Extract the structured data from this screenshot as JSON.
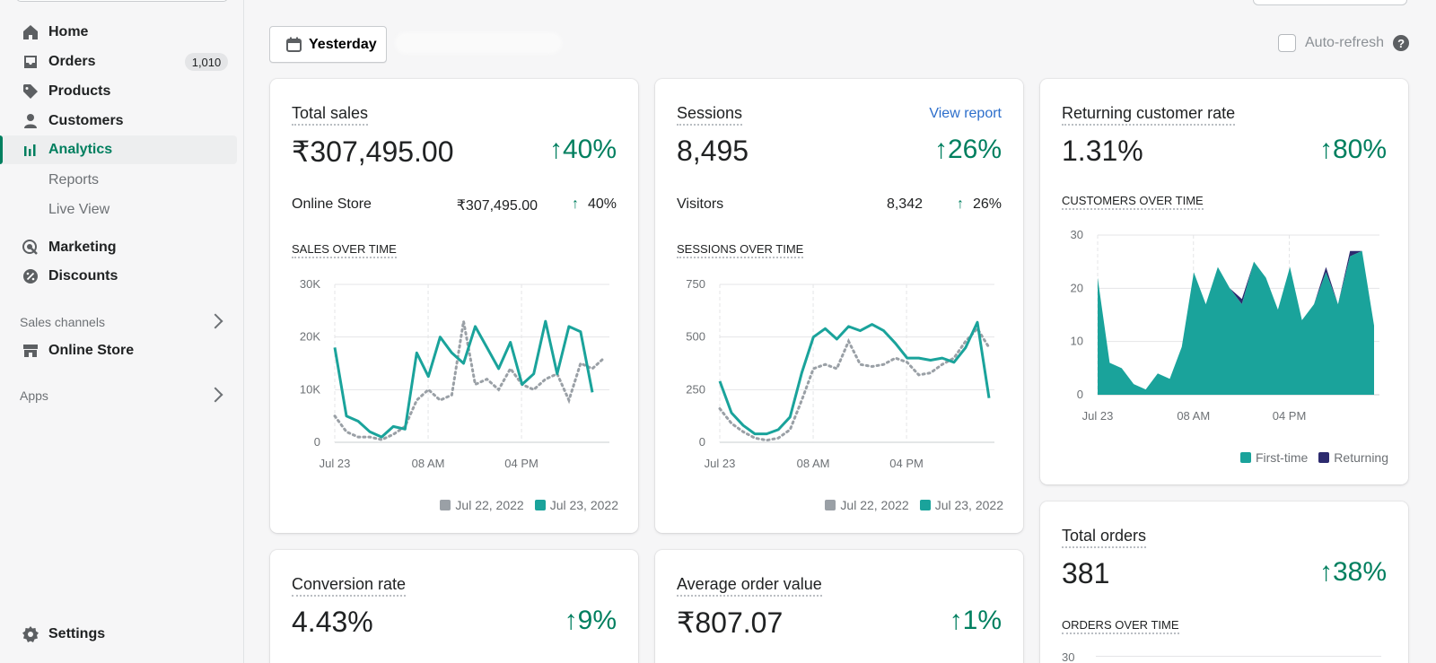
{
  "sidebar": {
    "items": [
      {
        "label": "Home",
        "icon": "home-icon"
      },
      {
        "label": "Orders",
        "icon": "inbox-icon",
        "badge": "1,010"
      },
      {
        "label": "Products",
        "icon": "tag-icon"
      },
      {
        "label": "Customers",
        "icon": "person-icon"
      },
      {
        "label": "Analytics",
        "icon": "bar-chart-icon"
      }
    ],
    "subitems": [
      "Reports",
      "Live View"
    ],
    "items2": [
      {
        "label": "Marketing",
        "icon": "target-icon"
      },
      {
        "label": "Discounts",
        "icon": "discount-icon"
      }
    ],
    "sales_channels": "Sales channels",
    "online_store": "Online Store",
    "apps": "Apps",
    "settings": "Settings"
  },
  "toolbar": {
    "date_label": "Yesterday",
    "autorefresh": "Auto-refresh",
    "help": "?"
  },
  "cards": {
    "total_sales": {
      "title": "Total sales",
      "value": "₹307,495.00",
      "change": "↑40%",
      "row_label": "Online Store",
      "row_value": "₹307,495.00",
      "row_arrow": "↑",
      "row_change": "40%",
      "chart_title": "SALES OVER TIME"
    },
    "sessions": {
      "title": "Sessions",
      "link": "View report",
      "value": "8,495",
      "change": "↑26%",
      "row_label": "Visitors",
      "row_value": "8,342",
      "row_arrow": "↑",
      "row_change": "26%",
      "chart_title": "SESSIONS OVER TIME"
    },
    "returning": {
      "title": "Returning customer rate",
      "value": "1.31%",
      "change": "↑80%",
      "chart_title": "CUSTOMERS OVER TIME"
    },
    "conversion": {
      "title": "Conversion rate",
      "value": "4.43%",
      "change": "↑9%"
    },
    "aov": {
      "title": "Average order value",
      "value": "₹807.07",
      "change": "↑1%"
    },
    "total_orders": {
      "title": "Total orders",
      "value": "381",
      "change": "↑38%",
      "chart_title": "ORDERS OVER TIME",
      "y_top": "30"
    }
  },
  "colors": {
    "current": "#1aa39b",
    "previous": "#9aa0a6",
    "returning": "#2c2a6e",
    "positive": "#007f5f"
  },
  "chart_data": [
    {
      "type": "line",
      "title": "SALES OVER TIME",
      "x_ticks": [
        "Jul 23",
        "08 AM",
        "04 PM"
      ],
      "y_ticks": [
        "0",
        "10K",
        "20K",
        "30K"
      ],
      "ylim": [
        0,
        30000
      ],
      "legend": [
        "Jul 22, 2022",
        "Jul 23, 2022"
      ],
      "series": [
        {
          "name": "Jul 22, 2022",
          "values": [
            5000,
            2000,
            1000,
            1000,
            500,
            1500,
            3000,
            8000,
            10000,
            8000,
            9000,
            23000,
            11000,
            12000,
            10000,
            14000,
            11000,
            10000,
            12000,
            13000,
            8000,
            15000,
            14000,
            16000
          ]
        },
        {
          "name": "Jul 23, 2022",
          "values": [
            18000,
            5000,
            4000,
            2000,
            1000,
            3000,
            2500,
            17000,
            12500,
            20000,
            17000,
            15000,
            22000,
            18000,
            14000,
            19000,
            11000,
            13000,
            23000,
            13000,
            22000,
            21000,
            9500
          ]
        }
      ]
    },
    {
      "type": "line",
      "title": "SESSIONS OVER TIME",
      "x_ticks": [
        "Jul 23",
        "08 AM",
        "04 PM"
      ],
      "y_ticks": [
        "0",
        "250",
        "500",
        "750"
      ],
      "ylim": [
        0,
        750
      ],
      "legend": [
        "Jul 22, 2022",
        "Jul 23, 2022"
      ],
      "series": [
        {
          "name": "Jul 22, 2022",
          "values": [
            160,
            90,
            50,
            20,
            10,
            20,
            60,
            200,
            350,
            370,
            350,
            480,
            370,
            360,
            370,
            400,
            380,
            320,
            330,
            370,
            400,
            480,
            540,
            450
          ]
        },
        {
          "name": "Jul 23, 2022",
          "values": [
            290,
            140,
            80,
            40,
            40,
            60,
            120,
            330,
            500,
            540,
            490,
            550,
            530,
            560,
            530,
            470,
            400,
            400,
            390,
            400,
            380,
            450,
            570,
            210
          ]
        }
      ]
    },
    {
      "type": "area",
      "title": "CUSTOMERS OVER TIME",
      "x_ticks": [
        "Jul 23",
        "08 AM",
        "04 PM"
      ],
      "y_ticks": [
        "0",
        "10",
        "20",
        "30"
      ],
      "ylim": [
        0,
        30
      ],
      "legend": [
        "First-time",
        "Returning"
      ],
      "series": [
        {
          "name": "First-time",
          "values": [
            22,
            6,
            5,
            2,
            1,
            4,
            3,
            9,
            23,
            17,
            24,
            20,
            17,
            25,
            22,
            16,
            24,
            14,
            17,
            23,
            17,
            26,
            27,
            13
          ]
        },
        {
          "name": "Returning",
          "values": [
            0,
            0,
            0,
            0,
            0,
            0,
            0,
            0,
            0,
            0,
            0,
            0,
            1,
            0,
            0,
            0,
            0,
            0,
            0,
            1,
            0,
            1,
            0,
            0
          ]
        }
      ]
    }
  ]
}
